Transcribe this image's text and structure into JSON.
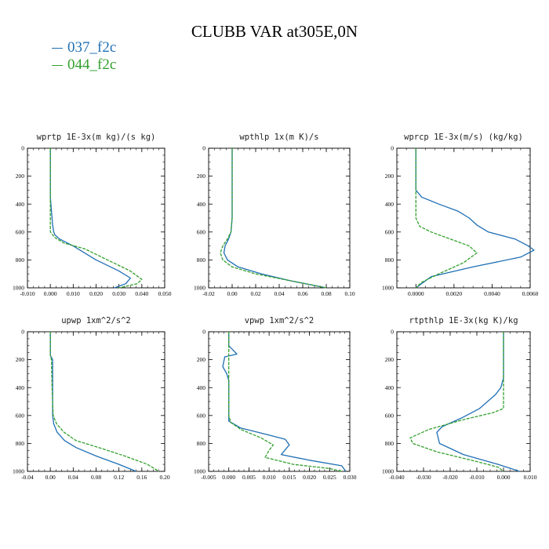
{
  "title": "CLUBB VAR at305E,0N",
  "legend": [
    {
      "label": "037_f2c",
      "color": "#1f6fb4"
    },
    {
      "label": "044_f2c",
      "color": "#33a02c"
    }
  ],
  "chart_data": [
    {
      "type": "line",
      "title": "wprtp  1E-3x(m kg)/(s kg)",
      "xlim": [
        -0.01,
        0.05
      ],
      "xticks": [
        -0.01,
        0.0,
        0.01,
        0.02,
        0.03,
        0.04,
        0.05
      ],
      "xticklabels": [
        "-0.010",
        "0.000",
        "0.010",
        "0.020",
        "0.030",
        "0.040",
        "0.050"
      ],
      "ylim": [
        1000,
        0
      ],
      "yticks": [
        0,
        200,
        400,
        600,
        800,
        1000
      ],
      "series": [
        {
          "name": "037_f2c",
          "color": "#1f6fb4",
          "dashed": false,
          "x": [
            0.0,
            0.0,
            0.0,
            0.0005,
            0.001,
            0.0015,
            0.002,
            0.004,
            0.01,
            0.02,
            0.03,
            0.035,
            0.033,
            0.028
          ],
          "y": [
            0,
            200,
            350,
            450,
            550,
            600,
            620,
            650,
            700,
            800,
            880,
            930,
            970,
            1000
          ]
        },
        {
          "name": "044_f2c",
          "color": "#33a02c",
          "dashed": true,
          "x": [
            0.0,
            0.0,
            0.0,
            0.0,
            0.0,
            0.002,
            0.006,
            0.015,
            0.025,
            0.035,
            0.04,
            0.038,
            0.03
          ],
          "y": [
            0,
            200,
            400,
            550,
            600,
            640,
            680,
            720,
            800,
            880,
            940,
            970,
            1000
          ]
        }
      ]
    },
    {
      "type": "line",
      "title": "wpthlp  1x(m K)/s",
      "xlim": [
        -0.02,
        0.1
      ],
      "xticks": [
        -0.02,
        0.0,
        0.02,
        0.04,
        0.06,
        0.08,
        0.1
      ],
      "xticklabels": [
        "-0.02",
        "0.00",
        "0.02",
        "0.04",
        "0.06",
        "0.08",
        "0.10"
      ],
      "ylim": [
        1000,
        0
      ],
      "yticks": [
        0,
        200,
        400,
        600,
        800,
        1000
      ],
      "series": [
        {
          "name": "037_f2c",
          "color": "#1f6fb4",
          "dashed": false,
          "x": [
            0.0,
            0.0,
            0.0,
            -0.001,
            -0.003,
            -0.006,
            -0.007,
            -0.004,
            0.005,
            0.025,
            0.05,
            0.08
          ],
          "y": [
            0,
            300,
            500,
            600,
            650,
            700,
            750,
            800,
            850,
            900,
            950,
            1000
          ]
        },
        {
          "name": "044_f2c",
          "color": "#33a02c",
          "dashed": true,
          "x": [
            0.0,
            0.0,
            0.0,
            -0.001,
            -0.004,
            -0.008,
            -0.01,
            -0.008,
            0.0,
            0.02,
            0.05,
            0.08
          ],
          "y": [
            0,
            300,
            500,
            600,
            650,
            700,
            750,
            800,
            850,
            900,
            950,
            1000
          ]
        }
      ]
    },
    {
      "type": "line",
      "title": "wprcp  1E-3x(m/s) (kg/kg)",
      "xlim": [
        -0.001,
        0.006
      ],
      "xticks": [
        0.0,
        0.002,
        0.004,
        0.006
      ],
      "xticklabels": [
        "0.0000",
        "0.0020",
        "0.0040",
        "0.0060"
      ],
      "ylim": [
        1000,
        0
      ],
      "yticks": [
        0,
        200,
        400,
        600,
        800,
        1000
      ],
      "series": [
        {
          "name": "037_f2c",
          "color": "#1f6fb4",
          "dashed": false,
          "x": [
            0.0,
            0.0,
            0.0,
            0.0003,
            0.0012,
            0.0022,
            0.0028,
            0.0032,
            0.0038,
            0.0052,
            0.0059,
            0.0062,
            0.0055,
            0.003,
            0.0008,
            0.0
          ],
          "y": [
            0,
            200,
            300,
            350,
            400,
            450,
            500,
            550,
            600,
            650,
            700,
            730,
            780,
            850,
            920,
            1000
          ]
        },
        {
          "name": "044_f2c",
          "color": "#33a02c",
          "dashed": true,
          "x": [
            0.0,
            0.0,
            0.0,
            0.0,
            0.0002,
            0.0008,
            0.0018,
            0.0028,
            0.0032,
            0.0025,
            0.0012,
            0.0003,
            0.0
          ],
          "y": [
            0,
            200,
            400,
            500,
            560,
            600,
            650,
            700,
            750,
            820,
            900,
            960,
            1000
          ]
        }
      ]
    },
    {
      "type": "line",
      "title": "upwp  1xm^2/s^2",
      "xlim": [
        -0.04,
        0.2
      ],
      "xticks": [
        -0.04,
        0.0,
        0.04,
        0.08,
        0.12,
        0.16,
        0.2
      ],
      "xticklabels": [
        "-0.04",
        "0.00",
        "0.04",
        "0.08",
        "0.12",
        "0.16",
        "0.20"
      ],
      "ylim": [
        1000,
        0
      ],
      "yticks": [
        0,
        200,
        400,
        600,
        800,
        1000
      ],
      "series": [
        {
          "name": "037_f2c",
          "color": "#1f6fb4",
          "dashed": false,
          "x": [
            0.0,
            0.0,
            0.0,
            0.004,
            0.004,
            0.004,
            0.006,
            0.012,
            0.025,
            0.045,
            0.08,
            0.12,
            0.15
          ],
          "y": [
            0,
            150,
            170,
            200,
            400,
            600,
            660,
            720,
            780,
            830,
            890,
            950,
            1000
          ]
        },
        {
          "name": "044_f2c",
          "color": "#33a02c",
          "dashed": true,
          "x": [
            0.0,
            0.0,
            0.0,
            0.002,
            0.003,
            0.005,
            0.011,
            0.024,
            0.045,
            0.085,
            0.13,
            0.17,
            0.19
          ],
          "y": [
            0,
            150,
            170,
            200,
            400,
            600,
            660,
            720,
            780,
            830,
            890,
            950,
            1000
          ]
        }
      ]
    },
    {
      "type": "line",
      "title": "vpwp  1xm^2/s^2",
      "xlim": [
        -0.005,
        0.03
      ],
      "xticks": [
        -0.005,
        0.0,
        0.005,
        0.01,
        0.015,
        0.02,
        0.025,
        0.03
      ],
      "xticklabels": [
        "-0.005",
        "0.000",
        "0.005",
        "0.010",
        "0.015",
        "0.020",
        "0.025",
        "0.030"
      ],
      "ylim": [
        1000,
        0
      ],
      "yticks": [
        0,
        200,
        400,
        600,
        800,
        1000
      ],
      "series": [
        {
          "name": "037_f2c",
          "color": "#1f6fb4",
          "dashed": false,
          "x": [
            0.0,
            0.0,
            0.001,
            0.002,
            -0.001,
            -0.0015,
            -0.0005,
            0.0,
            0.0,
            0.0,
            0.003,
            0.01,
            0.014,
            0.015,
            0.013,
            0.02,
            0.028,
            0.029
          ],
          "y": [
            0,
            100,
            130,
            160,
            180,
            250,
            300,
            350,
            450,
            640,
            690,
            740,
            770,
            810,
            880,
            920,
            960,
            1000
          ]
        },
        {
          "name": "044_f2c",
          "color": "#33a02c",
          "dashed": true,
          "x": [
            0.0,
            0.0,
            0.0,
            0.0,
            0.0,
            0.0005,
            0.003,
            0.008,
            0.011,
            0.01,
            0.009,
            0.016,
            0.025,
            0.028
          ],
          "y": [
            0,
            200,
            400,
            500,
            600,
            650,
            700,
            760,
            810,
            850,
            900,
            950,
            980,
            1000
          ]
        }
      ]
    },
    {
      "type": "line",
      "title": "rtpthlp  1E-3x(kg K)/kg",
      "xlim": [
        -0.04,
        0.01
      ],
      "xticks": [
        -0.04,
        -0.03,
        -0.02,
        -0.01,
        0.0,
        0.01
      ],
      "xticklabels": [
        "-0.040",
        "-0.030",
        "-0.020",
        "-0.010",
        "0.000",
        "0.010"
      ],
      "ylim": [
        1000,
        0
      ],
      "yticks": [
        0,
        200,
        400,
        600,
        800,
        1000
      ],
      "series": [
        {
          "name": "037_f2c",
          "color": "#1f6fb4",
          "dashed": false,
          "x": [
            0.0,
            0.0,
            0.0,
            -0.001,
            -0.003,
            -0.009,
            -0.016,
            -0.023,
            -0.025,
            -0.024,
            -0.015,
            -0.002,
            0.006
          ],
          "y": [
            0,
            200,
            330,
            400,
            450,
            550,
            620,
            680,
            720,
            800,
            880,
            950,
            1000
          ]
        },
        {
          "name": "044_f2c",
          "color": "#33a02c",
          "dashed": true,
          "x": [
            0.0,
            0.0,
            0.0,
            0.0,
            -0.004,
            -0.015,
            -0.028,
            -0.035,
            -0.034,
            -0.025,
            -0.01,
            -0.002,
            0.0
          ],
          "y": [
            0,
            200,
            400,
            550,
            580,
            630,
            700,
            760,
            800,
            860,
            930,
            970,
            1000
          ]
        }
      ]
    }
  ]
}
